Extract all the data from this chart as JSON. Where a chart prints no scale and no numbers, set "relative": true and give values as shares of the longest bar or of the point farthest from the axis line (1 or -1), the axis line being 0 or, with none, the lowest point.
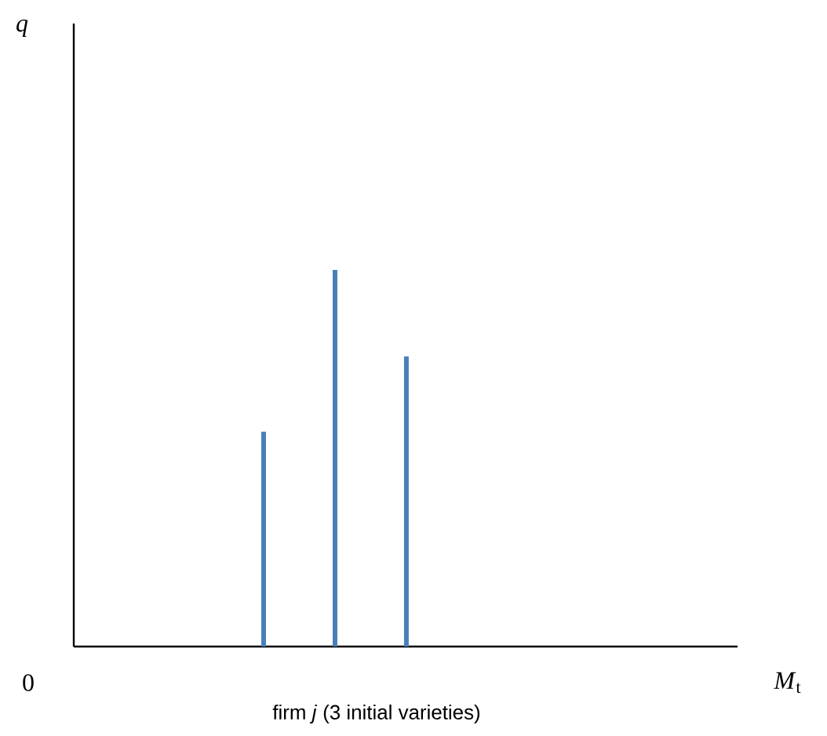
{
  "chart_data": {
    "type": "bar",
    "relative": true,
    "categories": [
      null,
      null,
      null
    ],
    "values": [
      0.57,
      1,
      0.77
    ],
    "color": "#4a7ebb",
    "annotations": [
      "q",
      "*M*$_{t}$",
      "0",
      "firm *j* (3 initial varieties)"
    ]
  }
}
